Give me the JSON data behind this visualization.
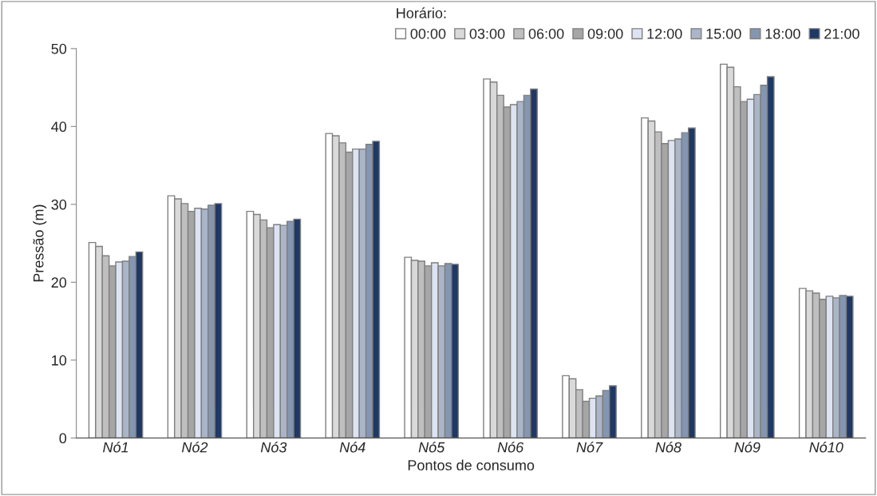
{
  "chart_data": {
    "type": "bar",
    "xlabel": "Pontos de consumo",
    "ylabel": "Pressão (m)",
    "legend_title": "Horário:",
    "categories": [
      "Nó1",
      "Nó2",
      "Nó3",
      "Nó4",
      "Nó5",
      "Nó6",
      "Nó7",
      "Nó8",
      "Nó9",
      "Nó10"
    ],
    "series": [
      {
        "name": "00:00",
        "color": "#ffffff",
        "values": [
          25.1,
          31.1,
          29.1,
          39.1,
          23.2,
          46.1,
          8.0,
          41.1,
          48.0,
          19.2
        ]
      },
      {
        "name": "03:00",
        "color": "#d9d9d9",
        "values": [
          24.6,
          30.7,
          28.7,
          38.8,
          22.8,
          45.7,
          7.6,
          40.7,
          47.6,
          18.9
        ]
      },
      {
        "name": "06:00",
        "color": "#bfbfbf",
        "values": [
          23.4,
          30.1,
          28.0,
          37.9,
          22.7,
          44.0,
          6.2,
          39.3,
          45.1,
          18.6
        ]
      },
      {
        "name": "09:00",
        "color": "#a6a6a6",
        "values": [
          22.1,
          29.1,
          27.0,
          36.7,
          22.1,
          42.5,
          4.7,
          37.8,
          43.2,
          17.8
        ]
      },
      {
        "name": "12:00",
        "color": "#dce3f2",
        "values": [
          22.6,
          29.5,
          27.4,
          37.1,
          22.5,
          42.8,
          5.1,
          38.2,
          43.5,
          18.2
        ]
      },
      {
        "name": "15:00",
        "color": "#aab5c8",
        "values": [
          22.7,
          29.4,
          27.3,
          37.1,
          22.1,
          43.2,
          5.4,
          38.4,
          44.1,
          18.0
        ]
      },
      {
        "name": "18:00",
        "color": "#8496b0",
        "values": [
          23.3,
          29.9,
          27.8,
          37.7,
          22.4,
          44.0,
          6.1,
          39.2,
          45.3,
          18.3
        ]
      },
      {
        "name": "21:00",
        "color": "#1f3864",
        "values": [
          23.9,
          30.1,
          28.1,
          38.1,
          22.3,
          44.8,
          6.7,
          39.8,
          46.4,
          18.2
        ]
      }
    ],
    "ylim": [
      0,
      50
    ],
    "yticks": [
      0,
      10,
      20,
      30,
      40,
      50
    ],
    "grid": false,
    "legend": "top right"
  }
}
